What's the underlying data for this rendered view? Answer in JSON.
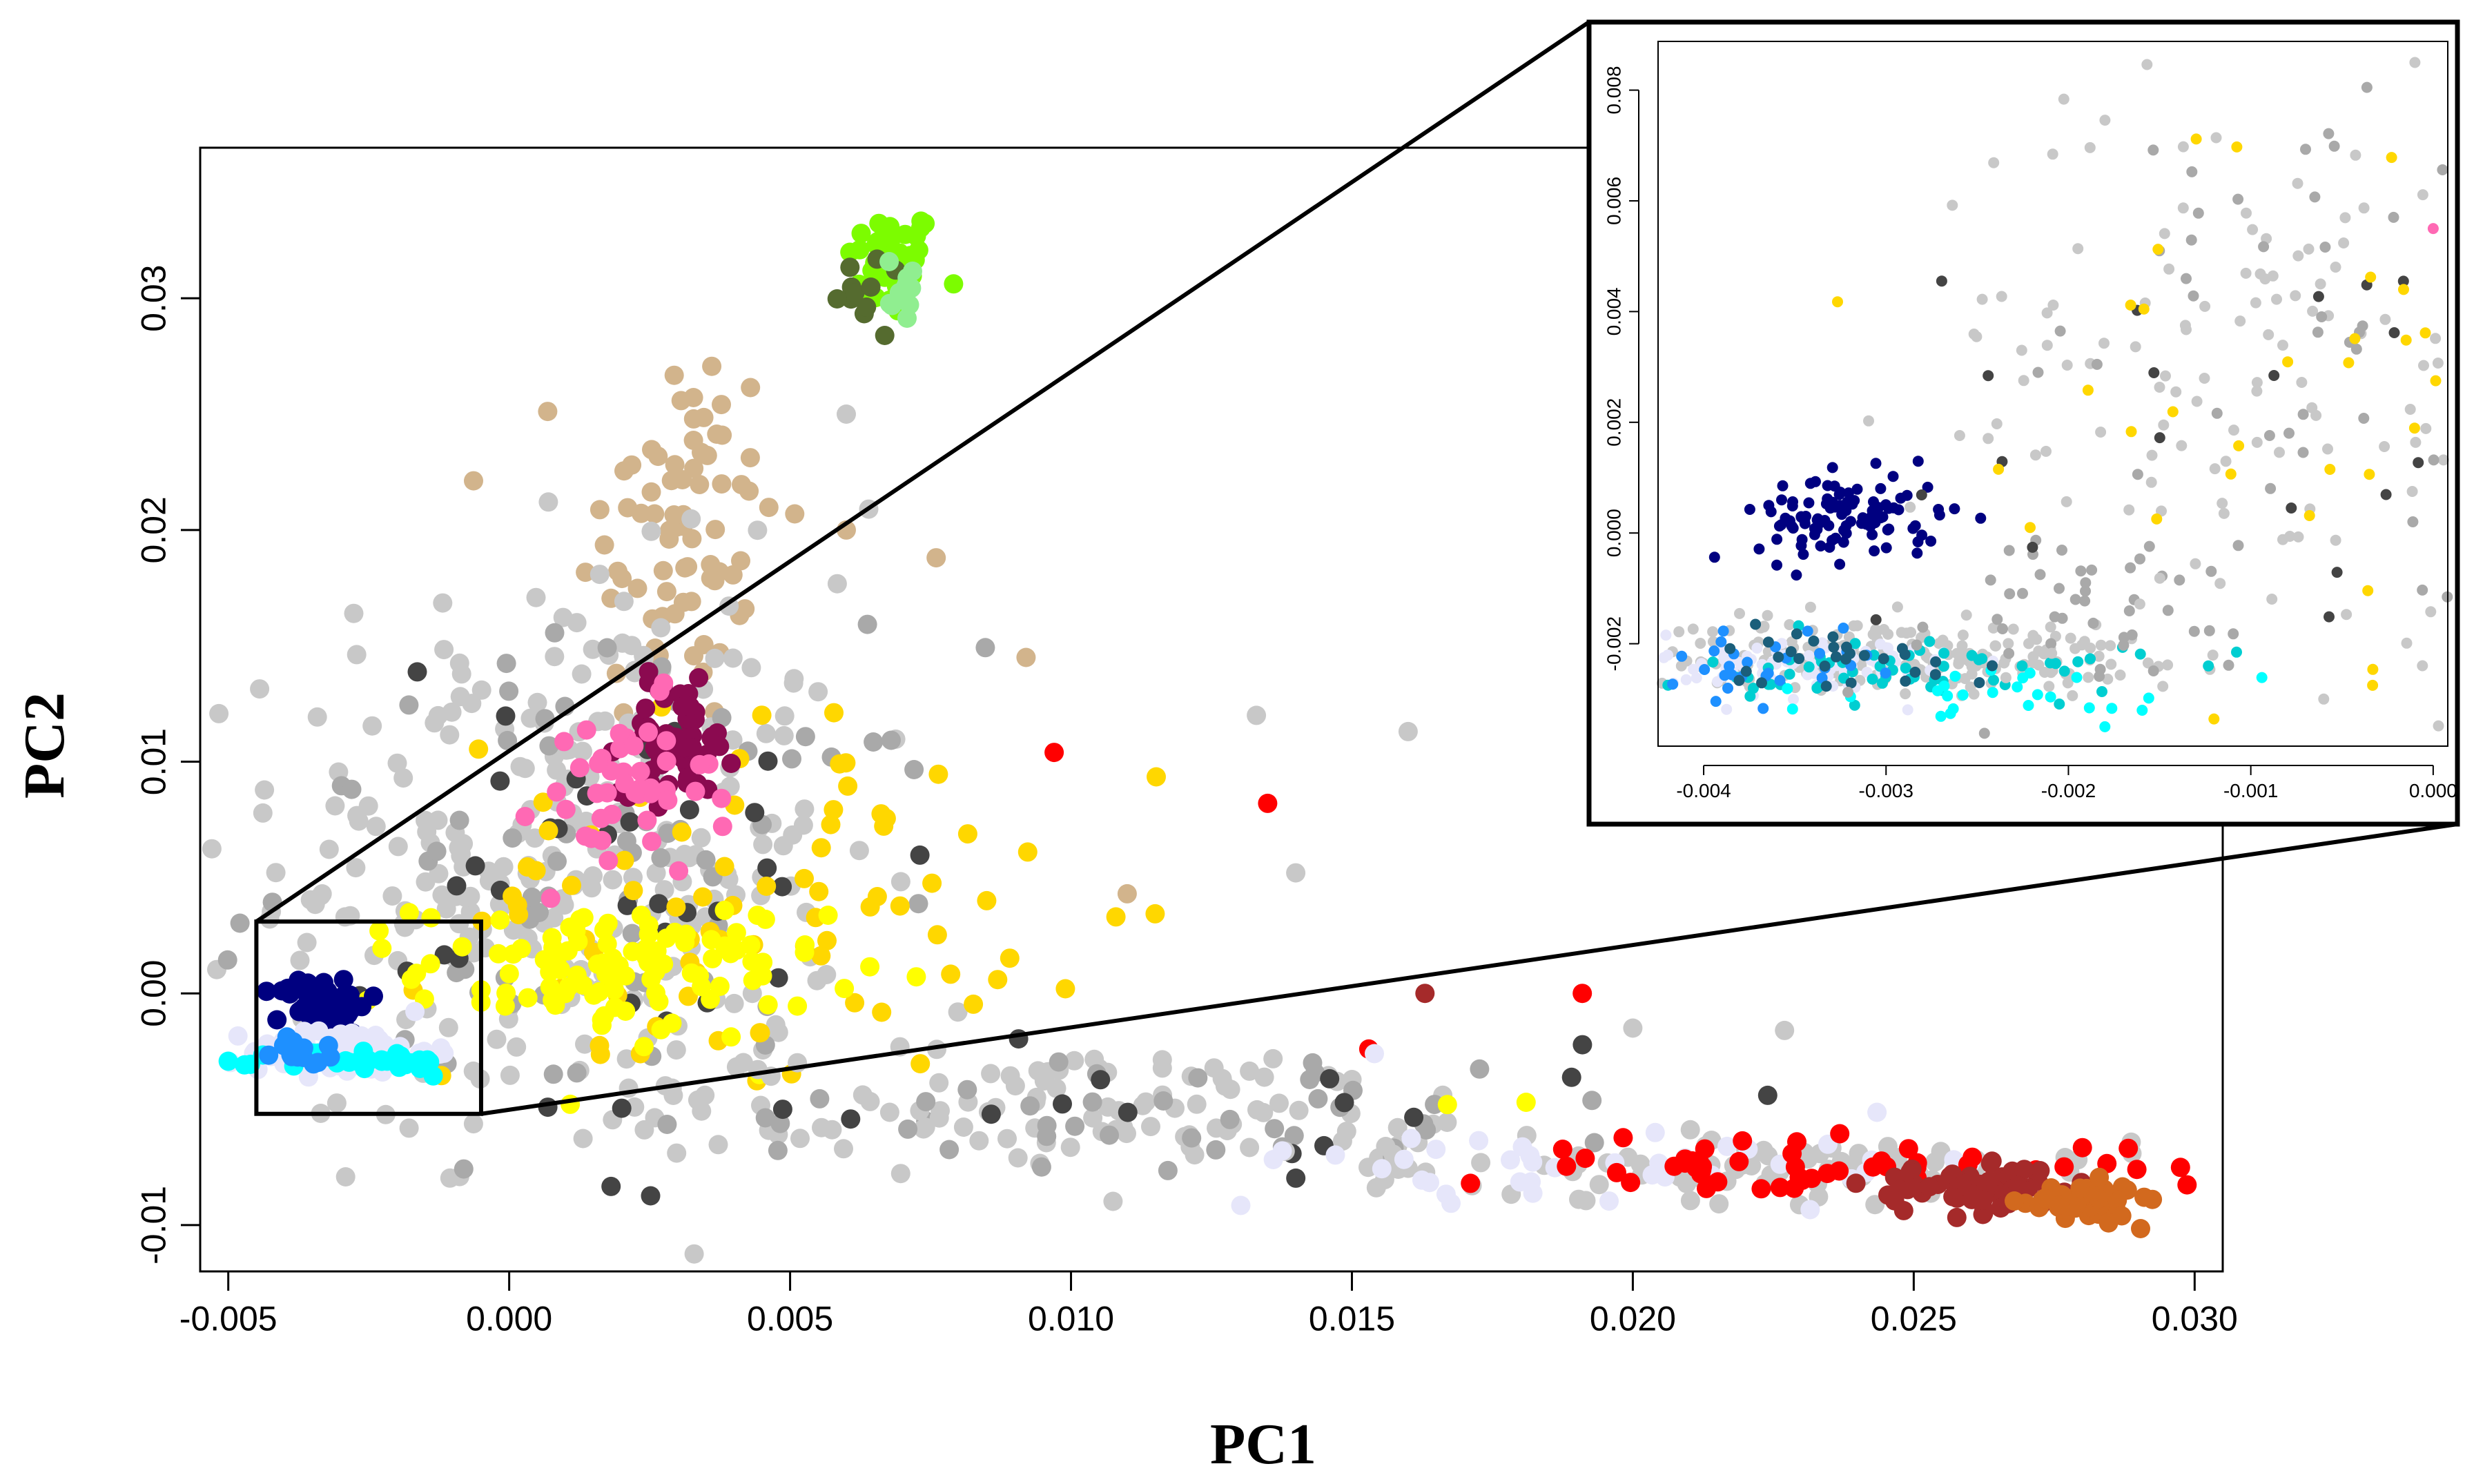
{
  "chart_data": [
    {
      "id": "main",
      "type": "scatter",
      "title": "",
      "xlabel": "PC1",
      "ylabel": "PC2",
      "xlim": [
        -0.0055,
        0.0305
      ],
      "ylim": [
        -0.012,
        0.0365
      ],
      "xticks": [
        -0.005,
        0.0,
        0.005,
        0.01,
        0.015,
        0.02,
        0.025,
        0.03
      ],
      "xtick_labels": [
        "-0.005",
        "0.000",
        "0.005",
        "0.010",
        "0.015",
        "0.020",
        "0.025",
        "0.030"
      ],
      "yticks": [
        -0.01,
        0.0,
        0.01,
        0.02,
        0.03
      ],
      "ytick_labels": [
        "-0.01",
        "0.00",
        "0.01",
        "0.02",
        "0.03"
      ],
      "grid": false,
      "legend": "none",
      "zoom_region": {
        "x": [
          -0.0045,
          -0.0005
        ],
        "y": [
          -0.0052,
          0.0031
        ]
      },
      "clusters": [
        {
          "color": "#7CFC00",
          "cx": 0.0068,
          "cy": 0.0315,
          "sx": 0.0004,
          "sy": 0.0012,
          "n": 45
        },
        {
          "color": "#556B2F",
          "cx": 0.0066,
          "cy": 0.03,
          "sx": 0.0004,
          "sy": 0.001,
          "n": 12
        },
        {
          "color": "#90EE90",
          "cx": 0.007,
          "cy": 0.0305,
          "sx": 0.0003,
          "sy": 0.0008,
          "n": 10
        },
        {
          "color": "#D2B48C",
          "cx": 0.003,
          "cy": 0.02,
          "sx": 0.0009,
          "sy": 0.0045,
          "n": 75
        },
        {
          "color": "#C8C8C8",
          "cx": 0.001,
          "cy": 0.006,
          "sx": 0.0025,
          "sy": 0.006,
          "n": 280
        },
        {
          "color": "#A9A9A9",
          "cx": 0.002,
          "cy": 0.005,
          "sx": 0.003,
          "sy": 0.005,
          "n": 70
        },
        {
          "color": "#444444",
          "cx": 0.0025,
          "cy": 0.005,
          "sx": 0.0025,
          "sy": 0.005,
          "n": 35
        },
        {
          "color": "#FFD700",
          "cx": 0.004,
          "cy": 0.004,
          "sx": 0.0025,
          "sy": 0.004,
          "n": 80
        },
        {
          "color": "#FFFF00",
          "cx": 0.002,
          "cy": 0.001,
          "sx": 0.0018,
          "sy": 0.0015,
          "n": 110
        },
        {
          "color": "#8B0A50",
          "cx": 0.003,
          "cy": 0.011,
          "sx": 0.0005,
          "sy": 0.0012,
          "n": 60
        },
        {
          "color": "#FF69B4",
          "cx": 0.002,
          "cy": 0.0085,
          "sx": 0.0008,
          "sy": 0.002,
          "n": 45
        },
        {
          "color": "#000080",
          "cx": -0.0033,
          "cy": -0.0005,
          "sx": 0.0004,
          "sy": 0.0006,
          "n": 60
        },
        {
          "color": "#E6E6FA",
          "cx": -0.003,
          "cy": -0.0025,
          "sx": 0.0008,
          "sy": 0.0005,
          "n": 90
        },
        {
          "color": "#00FFFF",
          "cx": -0.0025,
          "cy": -0.003,
          "sx": 0.0008,
          "sy": 0.0003,
          "n": 30
        },
        {
          "color": "#1E90FF",
          "cx": -0.0036,
          "cy": -0.0025,
          "sx": 0.0003,
          "sy": 0.0003,
          "n": 15
        },
        {
          "color": "#C8C8C8",
          "cx": 0.01,
          "cy": -0.005,
          "sx": 0.005,
          "sy": 0.0013,
          "n": 110
        },
        {
          "color": "#A9A9A9",
          "cx": 0.012,
          "cy": -0.005,
          "sx": 0.0045,
          "sy": 0.0013,
          "n": 40
        },
        {
          "color": "#444444",
          "cx": 0.012,
          "cy": -0.005,
          "sx": 0.005,
          "sy": 0.0014,
          "n": 18
        },
        {
          "color": "#C8C8C8",
          "cx": 0.022,
          "cy": -0.0075,
          "sx": 0.0035,
          "sy": 0.0007,
          "n": 90
        },
        {
          "color": "#E6E6FA",
          "cx": 0.02,
          "cy": -0.0072,
          "sx": 0.004,
          "sy": 0.0008,
          "n": 40
        },
        {
          "color": "#FF0000",
          "cx": 0.023,
          "cy": -0.0075,
          "sx": 0.003,
          "sy": 0.0006,
          "n": 55
        },
        {
          "color": "#A52A2A",
          "cx": 0.0262,
          "cy": -0.0085,
          "sx": 0.001,
          "sy": 0.0005,
          "n": 70
        },
        {
          "color": "#D2691E",
          "cx": 0.028,
          "cy": -0.009,
          "sx": 0.0005,
          "sy": 0.0004,
          "n": 55
        }
      ],
      "points": [
        {
          "x": 0.0097,
          "y": 0.0104,
          "color": "#FF0000"
        },
        {
          "x": 0.0135,
          "y": 0.0082,
          "color": "#FF0000"
        },
        {
          "x": 0.0191,
          "y": 0.0,
          "color": "#FF0000"
        },
        {
          "x": 0.0153,
          "y": -0.0024,
          "color": "#FF0000"
        },
        {
          "x": 0.0163,
          "y": 0.0,
          "color": "#A52A2A"
        },
        {
          "x": 0.0224,
          "y": -0.0044,
          "color": "#444444"
        },
        {
          "x": 0.0227,
          "y": -0.0016,
          "color": "#C8C8C8"
        },
        {
          "x": 0.02,
          "y": -0.0015,
          "color": "#C8C8C8"
        },
        {
          "x": 0.0133,
          "y": 0.012,
          "color": "#C8C8C8"
        },
        {
          "x": 0.016,
          "y": 0.0113,
          "color": "#C8C8C8"
        },
        {
          "x": 0.014,
          "y": 0.0052,
          "color": "#C8C8C8"
        },
        {
          "x": 0.0092,
          "y": 0.0145,
          "color": "#D2B48C"
        },
        {
          "x": 0.0076,
          "y": 0.0188,
          "color": "#D2B48C"
        },
        {
          "x": 0.006,
          "y": 0.02,
          "color": "#D2B48C"
        },
        {
          "x": 0.011,
          "y": 0.0043,
          "color": "#D2B48C"
        },
        {
          "x": 0.0167,
          "y": -0.0048,
          "color": "#FFFF00"
        },
        {
          "x": 0.0181,
          "y": -0.0047,
          "color": "#FFFF00"
        },
        {
          "x": 0.0099,
          "y": 0.0002,
          "color": "#FFD700"
        },
        {
          "x": 0.0085,
          "y": 0.004,
          "color": "#FFD700"
        },
        {
          "x": 0.0108,
          "y": 0.0033,
          "color": "#FFD700"
        },
        {
          "x": 0.006,
          "y": 0.025,
          "color": "#C8C8C8"
        },
        {
          "x": 0.0064,
          "y": 0.0209,
          "color": "#C8C8C8"
        },
        {
          "x": 0.0154,
          "y": -0.0026,
          "color": "#E6E6FA"
        },
        {
          "x": 0.0143,
          "y": -0.003,
          "color": "#A9A9A9"
        },
        {
          "x": 0.0291,
          "y": -0.0088,
          "color": "#D2691E"
        }
      ]
    },
    {
      "id": "inset",
      "type": "scatter",
      "title": "",
      "xlabel": "",
      "ylabel": "",
      "xlim": [
        -0.00425,
        8e-05
      ],
      "ylim": [
        -0.00385,
        0.00888
      ],
      "xticks": [
        -0.004,
        -0.003,
        -0.002,
        -0.001,
        0.0
      ],
      "xtick_labels": [
        "-0.004",
        "-0.003",
        "-0.002",
        "-0.001",
        "0.000"
      ],
      "yticks": [
        -0.002,
        0.0,
        0.002,
        0.004,
        0.006,
        0.008
      ],
      "ytick_labels": [
        "-0.002",
        "0.000",
        "0.002",
        "0.004",
        "0.006",
        "0.008"
      ],
      "grid": false,
      "legend": "none",
      "clusters": [
        {
          "color": "#000080",
          "cx": -0.0032,
          "cy": 0.0003,
          "sx": 0.00025,
          "sy": 0.0004,
          "n": 110
        },
        {
          "color": "#C8C8C8",
          "cx": -0.003,
          "cy": -0.0022,
          "sx": 0.0007,
          "sy": 0.0003,
          "n": 220
        },
        {
          "color": "#E6E6FA",
          "cx": -0.0034,
          "cy": -0.0024,
          "sx": 0.0004,
          "sy": 0.0003,
          "n": 90
        },
        {
          "color": "#00CED1",
          "cx": -0.0028,
          "cy": -0.0025,
          "sx": 0.0006,
          "sy": 0.0003,
          "n": 60
        },
        {
          "color": "#1E90FF",
          "cx": -0.0037,
          "cy": -0.0023,
          "sx": 0.0003,
          "sy": 0.0003,
          "n": 30
        },
        {
          "color": "#00FFFF",
          "cx": -0.0024,
          "cy": -0.0029,
          "sx": 0.0006,
          "sy": 0.00025,
          "n": 25
        },
        {
          "color": "#1B5E7A",
          "cx": -0.0032,
          "cy": -0.0022,
          "sx": 0.0004,
          "sy": 0.0003,
          "n": 30
        },
        {
          "color": "#A9A9A9",
          "cx": -0.002,
          "cy": -0.0015,
          "sx": 0.0007,
          "sy": 0.0008,
          "n": 45
        },
        {
          "color": "#C8C8C8",
          "cx": -0.001,
          "cy": 0.003,
          "sx": 0.0009,
          "sy": 0.0025,
          "n": 130
        },
        {
          "color": "#A9A9A9",
          "cx": -0.0008,
          "cy": 0.0035,
          "sx": 0.0008,
          "sy": 0.0025,
          "n": 40
        },
        {
          "color": "#444444",
          "cx": -0.001,
          "cy": 0.0025,
          "sx": 0.001,
          "sy": 0.0025,
          "n": 22
        },
        {
          "color": "#FFD700",
          "cx": -0.0007,
          "cy": 0.003,
          "sx": 0.0008,
          "sy": 0.0025,
          "n": 38
        }
      ],
      "points": [
        {
          "x": 0.0,
          "y": 0.0055,
          "color": "#FF69B4"
        },
        {
          "x": -0.0001,
          "y": 0.0085,
          "color": "#C8C8C8"
        },
        {
          "x": 0.0001,
          "y": 0.0084,
          "color": "#FFD700"
        },
        {
          "x": -0.0006,
          "y": -0.003,
          "color": "#C8C8C8"
        },
        {
          "x": -0.0018,
          "y": -0.0035,
          "color": "#00FFFF"
        }
      ]
    }
  ]
}
